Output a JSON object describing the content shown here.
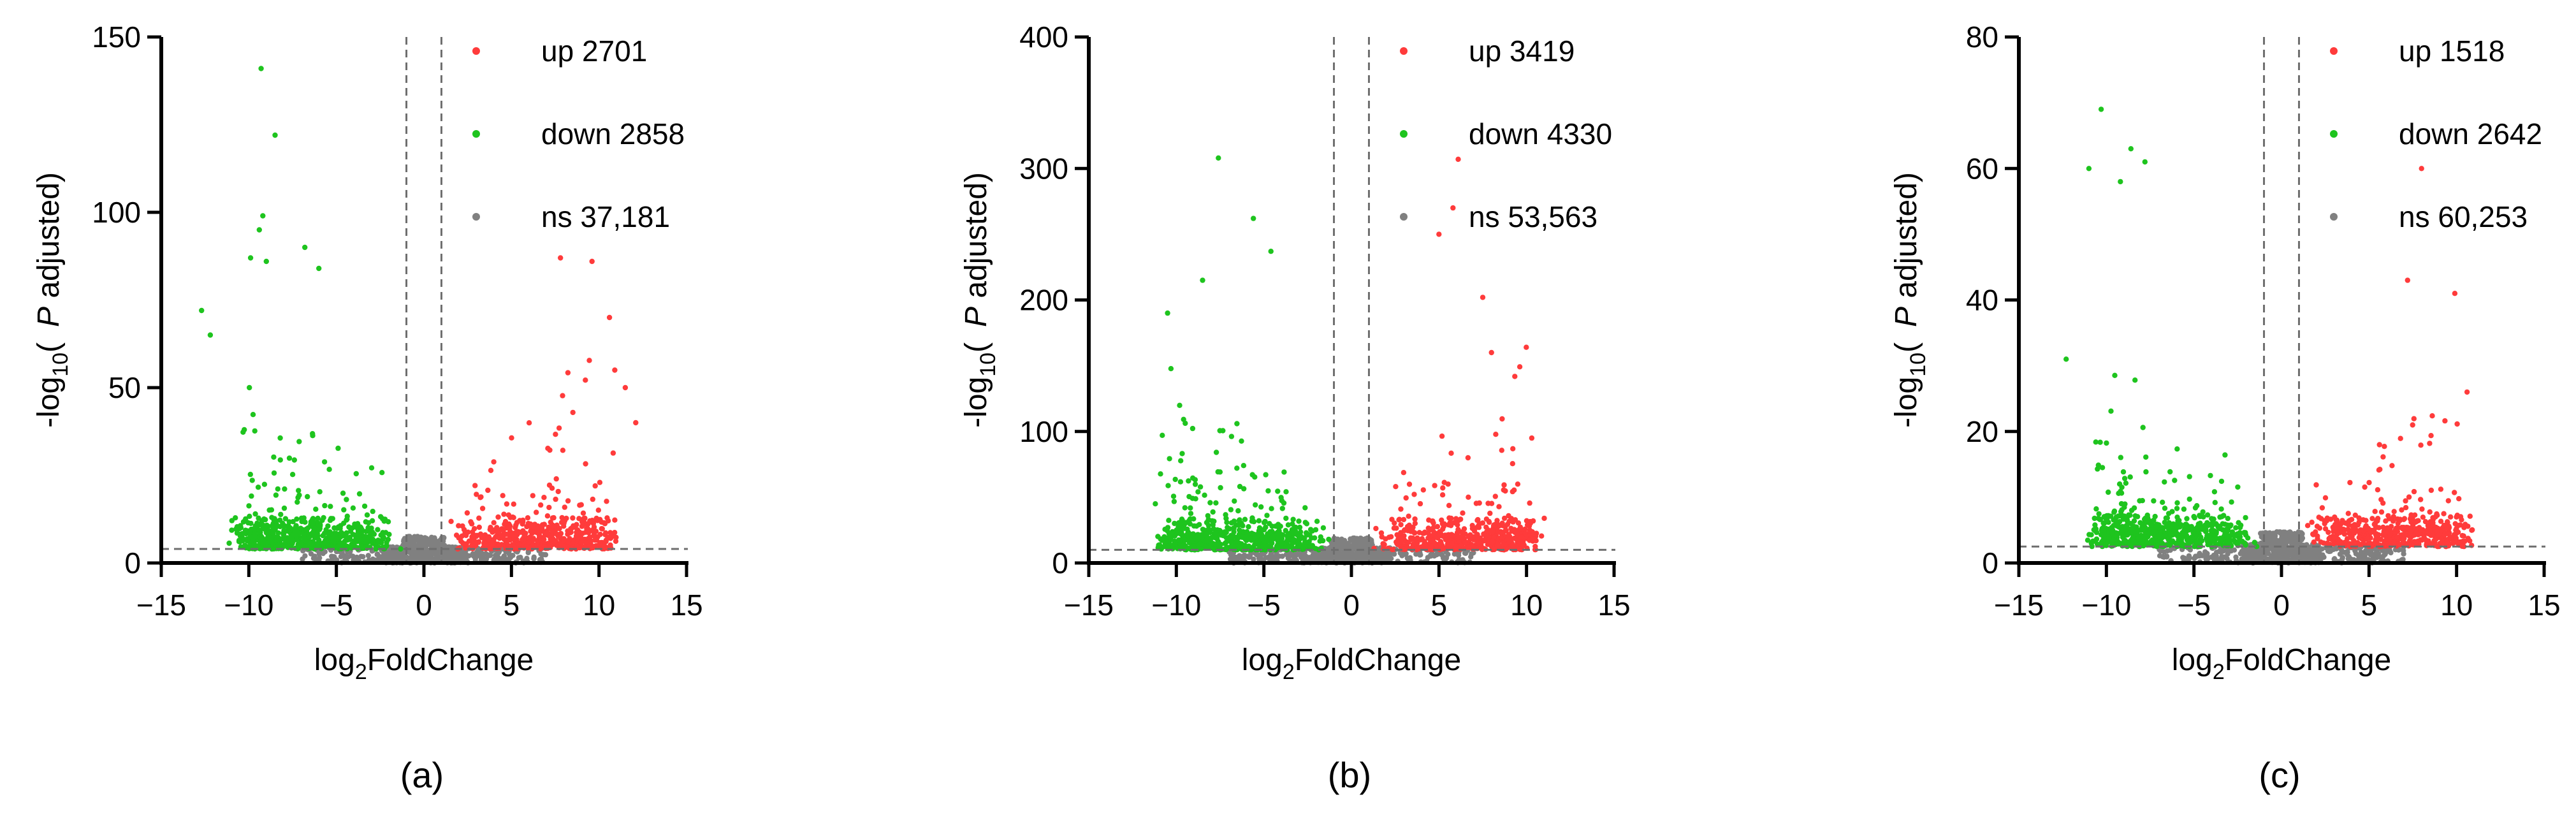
{
  "chart_data": [
    {
      "type": "scatter",
      "panel_label": "(a)",
      "xlabel_main": "log",
      "xlabel_sub": "2",
      "xlabel_tail": "FoldChange",
      "ylabel_main": "-log",
      "ylabel_sub": "10",
      "ylabel_open": "(",
      "ylabel_p": "P",
      "ylabel_tail": "adjusted)",
      "xlim": [
        -15,
        15
      ],
      "ylim": [
        0,
        150
      ],
      "xticks": [
        -15,
        -10,
        -5,
        0,
        5,
        10,
        15
      ],
      "yticks": [
        0,
        50,
        100,
        150
      ],
      "fc_threshold": 1,
      "padj_threshold_line": 4,
      "legend_position": "top-right",
      "legend": [
        {
          "label": "up 2701",
          "color": "#ff3b3b"
        },
        {
          "label": "down 2858",
          "color": "#1ec41e"
        },
        {
          "label": "ns 37,181",
          "color": "#808080"
        }
      ],
      "series": [
        {
          "name": "up",
          "count": 2701,
          "color": "#ff3b3b"
        },
        {
          "name": "down",
          "count": 2858,
          "color": "#1ec41e"
        },
        {
          "name": "ns",
          "count": 37181,
          "color": "#808080"
        }
      ],
      "outliers": {
        "down": [
          [
            -9.3,
            141
          ],
          [
            -8.5,
            122
          ],
          [
            -9.2,
            99
          ],
          [
            -9.4,
            95
          ],
          [
            -9.9,
            87
          ],
          [
            -9.0,
            86
          ],
          [
            -6.8,
            90
          ],
          [
            -6.0,
            84
          ],
          [
            -12.7,
            72
          ],
          [
            -12.2,
            65
          ]
        ],
        "up": [
          [
            7.8,
            87
          ],
          [
            9.6,
            86
          ],
          [
            10.6,
            70
          ],
          [
            11.5,
            50
          ],
          [
            12.1,
            40
          ],
          [
            10.9,
            55
          ]
        ]
      }
    },
    {
      "type": "scatter",
      "panel_label": "(b)",
      "xlabel_main": "log",
      "xlabel_sub": "2",
      "xlabel_tail": "FoldChange",
      "ylabel_main": "-log",
      "ylabel_sub": "10",
      "ylabel_open": "(",
      "ylabel_p": "P",
      "ylabel_tail": "adjusted)",
      "xlim": [
        -15,
        15
      ],
      "ylim": [
        0,
        400
      ],
      "xticks": [
        -15,
        -10,
        -5,
        0,
        5,
        10,
        15
      ],
      "yticks": [
        0,
        100,
        200,
        300,
        400
      ],
      "fc_threshold": 1,
      "padj_threshold_line": 10,
      "legend_position": "top-right",
      "legend": [
        {
          "label": "up 3419",
          "color": "#ff3b3b"
        },
        {
          "label": "down 4330",
          "color": "#1ec41e"
        },
        {
          "label": "ns 53,563",
          "color": "#808080"
        }
      ],
      "series": [
        {
          "name": "up",
          "count": 3419,
          "color": "#ff3b3b"
        },
        {
          "name": "down",
          "count": 4330,
          "color": "#1ec41e"
        },
        {
          "name": "ns",
          "count": 53563,
          "color": "#808080"
        }
      ],
      "outliers": {
        "down": [
          [
            -7.6,
            308
          ],
          [
            -5.6,
            262
          ],
          [
            -8.5,
            215
          ],
          [
            -4.6,
            237
          ],
          [
            -10.5,
            190
          ],
          [
            -11.2,
            45
          ]
        ],
        "up": [
          [
            6.1,
            307
          ],
          [
            5.8,
            270
          ],
          [
            5.0,
            250
          ],
          [
            7.5,
            202
          ],
          [
            10.3,
            95
          ],
          [
            8.0,
            160
          ],
          [
            9.5,
            60
          ]
        ]
      }
    },
    {
      "type": "scatter",
      "panel_label": "(c)",
      "xlabel_main": "log",
      "xlabel_sub": "2",
      "xlabel_tail": "FoldChange",
      "ylabel_main": "-log",
      "ylabel_sub": "10",
      "ylabel_open": "(",
      "ylabel_p": "P",
      "ylabel_tail": "adjusted)",
      "xlim": [
        -15,
        15
      ],
      "ylim": [
        0,
        80
      ],
      "xticks": [
        -15,
        -10,
        -5,
        0,
        5,
        10,
        15
      ],
      "yticks": [
        0,
        20,
        40,
        60,
        80
      ],
      "fc_threshold": 1,
      "padj_threshold_line": 2.5,
      "legend_position": "top-right",
      "legend": [
        {
          "label": "up 1518",
          "color": "#ff3b3b"
        },
        {
          "label": "down 2642",
          "color": "#1ec41e"
        },
        {
          "label": "ns 60,253",
          "color": "#808080"
        }
      ],
      "series": [
        {
          "name": "up",
          "count": 1518,
          "color": "#ff3b3b"
        },
        {
          "name": "down",
          "count": 2642,
          "color": "#1ec41e"
        },
        {
          "name": "ns",
          "count": 60253,
          "color": "#808080"
        }
      ],
      "outliers": {
        "down": [
          [
            -10.3,
            69
          ],
          [
            -8.6,
            63
          ],
          [
            -11.0,
            60
          ],
          [
            -7.8,
            61
          ],
          [
            -9.2,
            58
          ],
          [
            -12.3,
            31
          ]
        ],
        "up": [
          [
            8.0,
            60
          ],
          [
            9.9,
            41
          ],
          [
            7.2,
            43
          ],
          [
            10.6,
            26
          ]
        ]
      }
    }
  ]
}
